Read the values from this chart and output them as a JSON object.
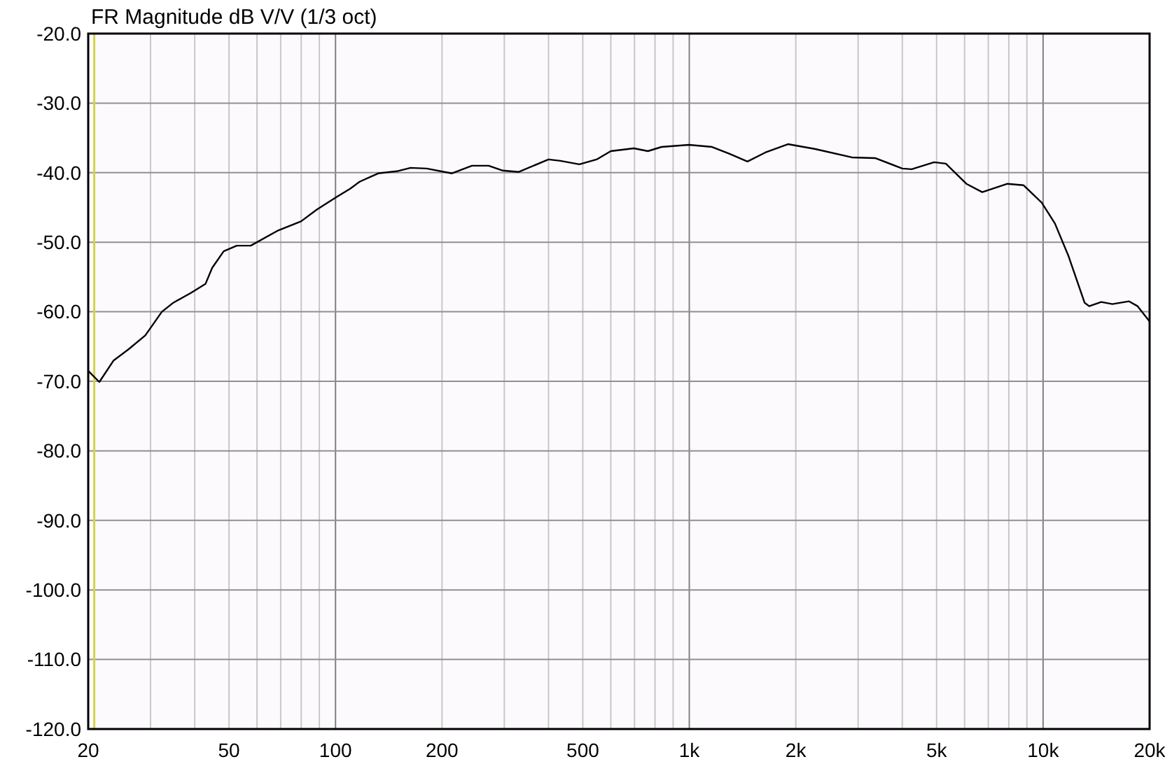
{
  "chart_data": {
    "type": "line",
    "title": "FR Magnitude dB V/V (1/3 oct)",
    "log": "x",
    "grid": true,
    "marker": "none",
    "line_style": "solid",
    "xlim": [
      20,
      20000
    ],
    "ylim": [
      -120,
      -20
    ],
    "xticks": [
      20,
      {
        "value": 30,
        "label": null
      },
      {
        "value": 40,
        "label": null
      },
      50,
      {
        "value": 60,
        "label": null
      },
      {
        "value": 70,
        "label": null
      },
      {
        "value": 80,
        "label": null
      },
      {
        "value": 90,
        "label": null
      },
      100,
      200,
      {
        "value": 300,
        "label": null
      },
      {
        "value": 400,
        "label": null
      },
      500,
      {
        "value": 600,
        "label": null
      },
      {
        "value": 700,
        "label": null
      },
      {
        "value": 800,
        "label": null
      },
      {
        "value": 900,
        "label": null
      },
      {
        "value": 1000,
        "label": "1k"
      },
      {
        "value": 2000,
        "label": "2k"
      },
      {
        "value": 3000,
        "label": null
      },
      {
        "value": 4000,
        "label": null
      },
      {
        "value": 5000,
        "label": "5k"
      },
      {
        "value": 6000,
        "label": null
      },
      {
        "value": 7000,
        "label": null
      },
      {
        "value": 8000,
        "label": null
      },
      {
        "value": 9000,
        "label": null
      },
      {
        "value": 10000,
        "label": "10k"
      },
      {
        "value": 20000,
        "label": "20k"
      }
    ],
    "yticks": [
      {
        "value": -20,
        "label": "-20.0"
      },
      {
        "value": -30,
        "label": "-30.0"
      },
      {
        "value": -40,
        "label": "-40.0"
      },
      {
        "value": -50,
        "label": "-50.0"
      },
      {
        "value": -60,
        "label": "-60.0"
      },
      {
        "value": -70,
        "label": "-70.0"
      },
      {
        "value": -80,
        "label": "-80.0"
      },
      {
        "value": -90,
        "label": "-90.0"
      },
      {
        "value": -100,
        "label": "-100.0"
      },
      {
        "value": -110,
        "label": "-110.0"
      },
      {
        "value": -120,
        "label": "-120.0"
      }
    ],
    "ref_lines": [
      {
        "axis": "x",
        "value": 20.8,
        "color": "#d4d44a"
      }
    ],
    "series": [
      {
        "color": "#000000",
        "x": [
          20,
          21.5,
          23.6,
          26,
          29,
          32.3,
          34.8,
          39,
          42.9,
          44.8,
          48.3,
          52.6,
          57.6,
          68.9,
          79.9,
          88.6,
          100,
          110,
          117,
          132,
          149,
          163,
          181,
          213,
          243,
          271,
          297,
          329,
          400,
          432,
          489,
          547,
          600,
          697,
          764,
          835,
          998,
          1160,
          1300,
          1460,
          1640,
          1900,
          2270,
          2880,
          3350,
          4000,
          4250,
          4920,
          5310,
          6070,
          6730,
          7930,
          8800,
          9910,
          10800,
          11800,
          13100,
          13500,
          14600,
          15700,
          17500,
          18500,
          20000
        ],
        "values": [
          -68.5,
          -70.1,
          -67,
          -65.4,
          -63.4,
          -60,
          -58.7,
          -57.3,
          -56,
          -53.7,
          -51.3,
          -50.5,
          -50.5,
          -48.3,
          -47,
          -45.3,
          -43.6,
          -42.3,
          -41.3,
          -40.1,
          -39.8,
          -39.3,
          -39.4,
          -40.1,
          -39,
          -39,
          -39.7,
          -39.9,
          -38.1,
          -38.3,
          -38.8,
          -38.1,
          -36.9,
          -36.5,
          -36.9,
          -36.3,
          -36,
          -36.3,
          -37.3,
          -38.4,
          -37.1,
          -35.9,
          -36.6,
          -37.8,
          -37.9,
          -39.4,
          -39.5,
          -38.5,
          -38.7,
          -41.6,
          -42.8,
          -41.6,
          -41.8,
          -44.3,
          -47.3,
          -52,
          -58.7,
          -59.2,
          -58.6,
          -58.9,
          -58.5,
          -59.2,
          -61.4
        ]
      }
    ]
  }
}
